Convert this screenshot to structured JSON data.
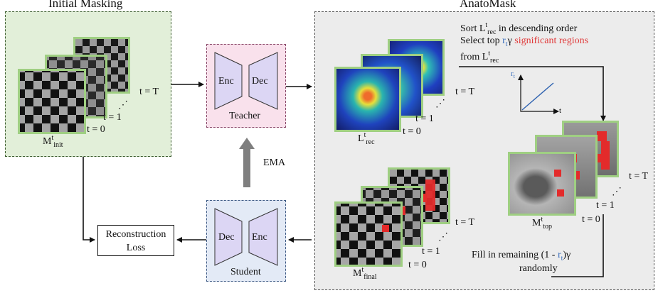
{
  "titles": {
    "initial": "Initial Masking",
    "anatomask": "AnatoMask"
  },
  "teacher": {
    "enc": "Enc",
    "dec": "Dec",
    "label": "Teacher"
  },
  "student": {
    "dec": "Dec",
    "enc": "Enc",
    "label": "Student"
  },
  "ema_label": "EMA",
  "recon": {
    "line1": "Reconstruction",
    "line2": "Loss"
  },
  "init_stack": {
    "t_T": "t = T",
    "dots": "⋰",
    "t_1": "t = 1",
    "t_0": "t = 0",
    "label_main": "M",
    "label_sup": "t",
    "label_sub": "init"
  },
  "rec_stack": {
    "t_T": "t = T",
    "dots": "⋰",
    "t_1": "t = 1",
    "t_0": "t = 0",
    "label_main": "L",
    "label_sup": "t",
    "label_sub": "rec"
  },
  "top_stack": {
    "t_T": "t = T",
    "dots": "⋰",
    "t_1": "t = 1",
    "t_0": "t = 0",
    "label_main": "M",
    "label_sup": "t",
    "label_sub": "top"
  },
  "final_stack": {
    "t_T": "t = T",
    "dots": "⋰",
    "t_1": "t = 1",
    "t_0": "t = 0",
    "label_main": "M",
    "label_sup": "t",
    "label_sub": "final"
  },
  "sort_text": {
    "l1_a": "Sort L",
    "l1_sup": "t",
    "l1_sub": "rec",
    "l1_b": " in descending order",
    "l2_a": "Select top ",
    "l2_r": "r",
    "l2_rsub": "t",
    "l2_g": "γ",
    "l2_sig": " significant regions",
    "l3_a": "from L",
    "l3_sup": "t",
    "l3_sub": "rec"
  },
  "mini_chart": {
    "ylabel_main": "r",
    "ylabel_sub": "t",
    "xlabel": "t"
  },
  "fill_text": {
    "a": "Fill in remaining (1 - ",
    "r": "r",
    "rsub": "t",
    "b": ")γ",
    "line2": "randomly"
  },
  "colors": {
    "init_bg": "#e2efd9",
    "teacher_bg": "#f9e1ec",
    "student_bg": "#e3eaf6",
    "anato_bg": "#ececec",
    "tile_border": "#9fcf82",
    "accent_red": "#e03a3a",
    "accent_blue": "#3a6ebd"
  }
}
